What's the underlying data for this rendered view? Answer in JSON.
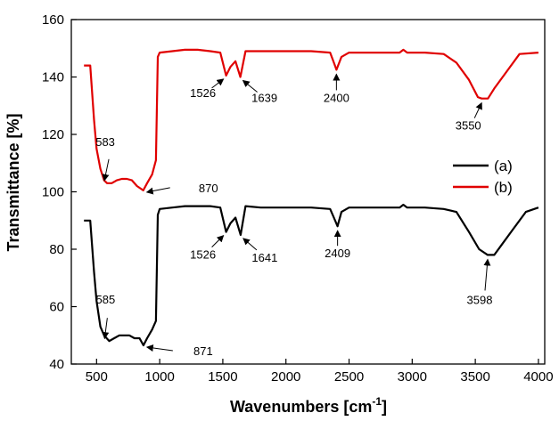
{
  "chart_data": {
    "type": "line",
    "title": "",
    "xlabel": "Wavenumbers [cm",
    "xlabel_sup": "-1",
    "xlabel_close": "]",
    "ylabel": "Transmittance [%]",
    "xlim": [
      300,
      4050
    ],
    "ylim": [
      40,
      160
    ],
    "x_ticks": [
      500,
      1000,
      1500,
      2000,
      2500,
      3000,
      3500,
      4000
    ],
    "y_ticks": [
      40,
      60,
      80,
      100,
      120,
      140,
      160
    ],
    "grid": false,
    "legend_position": "right",
    "series": [
      {
        "name": "(a)",
        "color": "#000000",
        "x": [
          400,
          450,
          480,
          500,
          530,
          560,
          600,
          640,
          680,
          720,
          760,
          800,
          840,
          871,
          900,
          940,
          970,
          985,
          1000,
          1100,
          1200,
          1300,
          1400,
          1480,
          1526,
          1560,
          1600,
          1641,
          1680,
          1800,
          2000,
          2200,
          2350,
          2380,
          2409,
          2440,
          2500,
          2700,
          2900,
          2930,
          2960,
          3100,
          3250,
          3350,
          3450,
          3530,
          3598,
          3650,
          3700,
          3800,
          3900,
          4000
        ],
        "y": [
          90,
          90,
          72,
          62,
          53,
          50,
          48,
          49,
          50,
          50,
          50,
          49,
          49,
          46.5,
          49,
          52,
          55,
          92,
          94,
          94.5,
          95,
          95,
          95,
          94.5,
          86,
          89,
          91,
          85,
          95,
          94.5,
          94.5,
          94.5,
          94,
          91,
          88,
          93,
          94.5,
          94.5,
          94.5,
          95.5,
          94.5,
          94.5,
          94,
          93,
          86,
          80,
          78,
          78,
          81,
          87,
          93,
          94.5
        ]
      },
      {
        "name": "(b)",
        "color": "#e00000",
        "x": [
          400,
          450,
          480,
          500,
          530,
          560,
          583,
          620,
          660,
          700,
          740,
          780,
          820,
          870,
          900,
          940,
          970,
          985,
          1000,
          1100,
          1200,
          1300,
          1400,
          1480,
          1526,
          1560,
          1600,
          1639,
          1680,
          1800,
          2000,
          2200,
          2350,
          2380,
          2400,
          2440,
          2500,
          2700,
          2900,
          2930,
          2960,
          3100,
          3250,
          3350,
          3450,
          3520,
          3550,
          3600,
          3650,
          3750,
          3850,
          4000
        ],
        "y": [
          144,
          144,
          125,
          115,
          108,
          104,
          103,
          103,
          104,
          104.5,
          104.5,
          104,
          102,
          100.5,
          103,
          106,
          111,
          147,
          148.5,
          149,
          149.5,
          149.5,
          149,
          148.5,
          140.5,
          143.5,
          145.5,
          140,
          149,
          149,
          149,
          149,
          148.5,
          145,
          142.5,
          147,
          148.5,
          148.5,
          148.5,
          149.5,
          148.5,
          148.5,
          148,
          145,
          139,
          133,
          132.5,
          132.5,
          136,
          142,
          148,
          148.5
        ]
      }
    ],
    "annotations": [
      {
        "text": "583",
        "series": "(b)",
        "x": 583,
        "y": 103
      },
      {
        "text": "870",
        "series": "(b)",
        "x": 870,
        "y": 100.5
      },
      {
        "text": "1526",
        "series": "(b)",
        "x": 1526,
        "y": 140.5
      },
      {
        "text": "1639",
        "series": "(b)",
        "x": 1639,
        "y": 140
      },
      {
        "text": "2400",
        "series": "(b)",
        "x": 2400,
        "y": 142.5
      },
      {
        "text": "3550",
        "series": "(b)",
        "x": 3550,
        "y": 132.5
      },
      {
        "text": "585",
        "series": "(a)",
        "x": 585,
        "y": 48
      },
      {
        "text": "871",
        "series": "(a)",
        "x": 871,
        "y": 46.5
      },
      {
        "text": "1526",
        "series": "(a)",
        "x": 1526,
        "y": 86
      },
      {
        "text": "1641",
        "series": "(a)",
        "x": 1641,
        "y": 85
      },
      {
        "text": "2409",
        "series": "(a)",
        "x": 2409,
        "y": 88
      },
      {
        "text": "3598",
        "series": "(a)",
        "x": 3598,
        "y": 78
      }
    ]
  }
}
